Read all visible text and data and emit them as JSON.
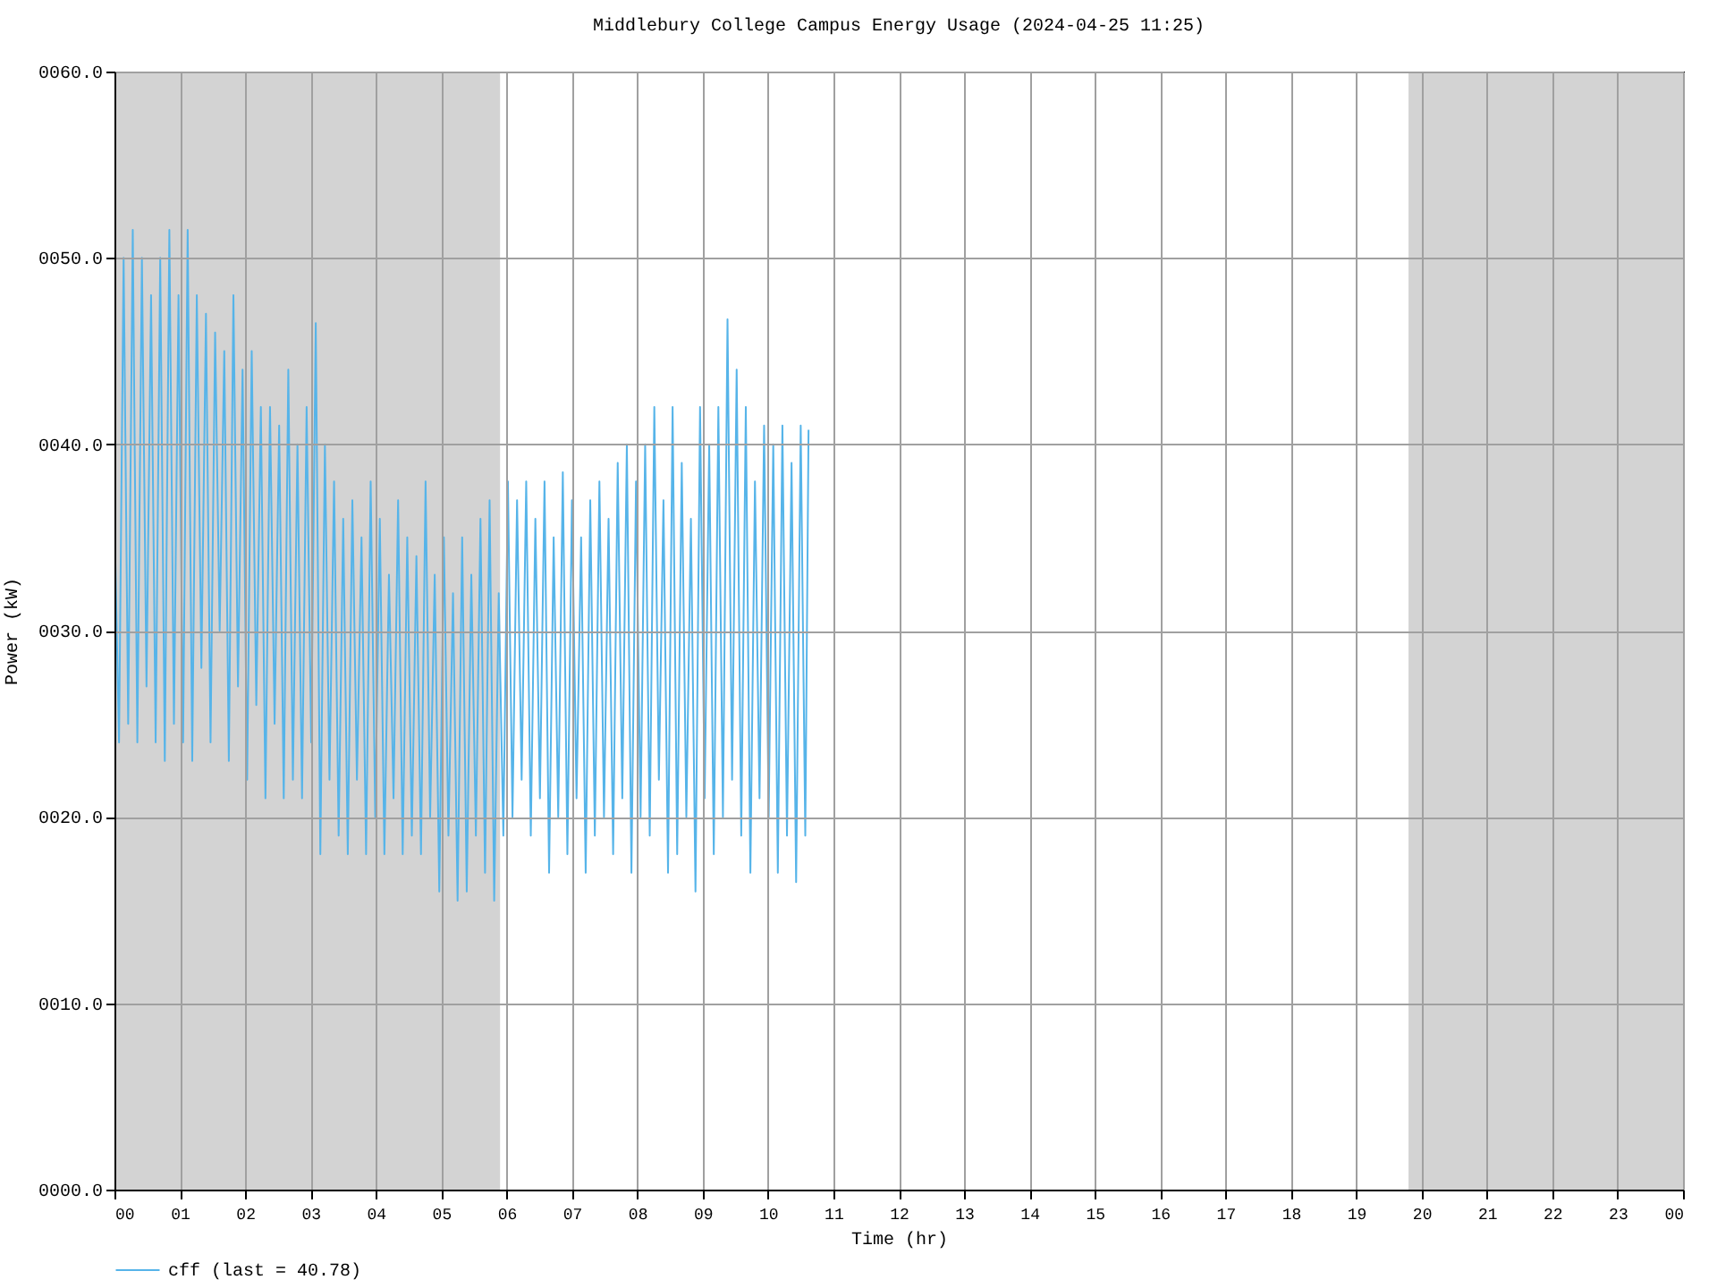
{
  "chart_data": {
    "type": "line",
    "title": "Middlebury College Campus Energy Usage (2024-04-25 11:25)",
    "xlabel": "Time (hr)",
    "ylabel": "Power (kW)",
    "xlim": [
      0,
      24
    ],
    "xticks": [
      {
        "value": 0,
        "label": "00"
      },
      {
        "value": 1,
        "label": "01"
      },
      {
        "value": 2,
        "label": "02"
      },
      {
        "value": 3,
        "label": "03"
      },
      {
        "value": 4,
        "label": "04"
      },
      {
        "value": 5,
        "label": "05"
      },
      {
        "value": 6,
        "label": "06"
      },
      {
        "value": 7,
        "label": "07"
      },
      {
        "value": 8,
        "label": "08"
      },
      {
        "value": 9,
        "label": "09"
      },
      {
        "value": 10,
        "label": "10"
      },
      {
        "value": 11,
        "label": "11"
      },
      {
        "value": 12,
        "label": "12"
      },
      {
        "value": 13,
        "label": "13"
      },
      {
        "value": 14,
        "label": "14"
      },
      {
        "value": 15,
        "label": "15"
      },
      {
        "value": 16,
        "label": "16"
      },
      {
        "value": 17,
        "label": "17"
      },
      {
        "value": 18,
        "label": "18"
      },
      {
        "value": 19,
        "label": "19"
      },
      {
        "value": 20,
        "label": "20"
      },
      {
        "value": 21,
        "label": "21"
      },
      {
        "value": 22,
        "label": "22"
      },
      {
        "value": 23,
        "label": "23"
      },
      {
        "value": 24,
        "label": "00"
      }
    ],
    "ylim": [
      0,
      60
    ],
    "yticks": [
      {
        "value": 0,
        "label": "0000.0"
      },
      {
        "value": 10,
        "label": "0010.0"
      },
      {
        "value": 20,
        "label": "0020.0"
      },
      {
        "value": 30,
        "label": "0030.0"
      },
      {
        "value": 40,
        "label": "0040.0"
      },
      {
        "value": 50,
        "label": "0050.0"
      },
      {
        "value": 60,
        "label": "0060.0"
      }
    ],
    "grid": true,
    "legend": "bottom",
    "bands": [
      {
        "axis": "x",
        "from": 0,
        "to": 5.9,
        "color": "#d3d3d3"
      },
      {
        "axis": "x",
        "from": 19.8,
        "to": 24,
        "color": "#d3d3d3"
      }
    ],
    "series": [
      {
        "name": "cff (last = 40.78)",
        "color": "#56b4e9",
        "x": [
          0.0,
          0.07,
          0.14,
          0.21,
          0.28,
          0.35,
          0.42,
          0.49,
          0.56,
          0.63,
          0.7,
          0.77,
          0.84,
          0.91,
          0.98,
          1.05,
          1.12,
          1.19,
          1.26,
          1.33,
          1.4,
          1.47,
          1.54,
          1.61,
          1.68,
          1.75,
          1.82,
          1.89,
          1.96,
          2.03,
          2.1,
          2.17,
          2.24,
          2.31,
          2.38,
          2.45,
          2.52,
          2.59,
          2.66,
          2.73,
          2.8,
          2.87,
          2.94,
          3.01,
          3.08,
          3.15,
          3.22,
          3.29,
          3.36,
          3.43,
          3.5,
          3.57,
          3.64,
          3.71,
          3.78,
          3.85,
          3.92,
          3.99,
          4.06,
          4.13,
          4.2,
          4.27,
          4.34,
          4.41,
          4.48,
          4.55,
          4.62,
          4.69,
          4.76,
          4.83,
          4.9,
          4.97,
          5.04,
          5.11,
          5.18,
          5.25,
          5.32,
          5.39,
          5.46,
          5.53,
          5.6,
          5.67,
          5.74,
          5.81,
          5.88,
          5.95,
          6.02,
          6.09,
          6.16,
          6.23,
          6.3,
          6.37,
          6.44,
          6.51,
          6.58,
          6.65,
          6.72,
          6.79,
          6.86,
          6.93,
          7.0,
          7.07,
          7.14,
          7.21,
          7.28,
          7.35,
          7.42,
          7.49,
          7.56,
          7.63,
          7.7,
          7.77,
          7.84,
          7.91,
          7.98,
          8.05,
          8.12,
          8.19,
          8.26,
          8.33,
          8.4,
          8.47,
          8.54,
          8.61,
          8.68,
          8.75,
          8.82,
          8.89,
          8.96,
          9.03,
          9.1,
          9.17,
          9.24,
          9.31,
          9.38,
          9.45,
          9.52,
          9.59,
          9.66,
          9.73,
          9.8,
          9.87,
          9.94,
          10.01,
          10.08,
          10.15,
          10.22,
          10.29,
          10.36,
          10.43,
          10.5,
          10.57,
          10.62
        ],
        "values": [
          36,
          24,
          50,
          25,
          51.5,
          24,
          50,
          27,
          48,
          24,
          50,
          23,
          51.5,
          25,
          48,
          24,
          51.5,
          23,
          48,
          28,
          47,
          24,
          46,
          30,
          45,
          23,
          48,
          27,
          44,
          22,
          45,
          26,
          42,
          21,
          42,
          25,
          41,
          21,
          44,
          22,
          40,
          21,
          42,
          24,
          46.5,
          18,
          40,
          22,
          38,
          19,
          36,
          18,
          37,
          22,
          35,
          18,
          38,
          20,
          36,
          18,
          33,
          21,
          37,
          18,
          35,
          19,
          34,
          18,
          38,
          20,
          33,
          16,
          35,
          19,
          32,
          15.5,
          35,
          16,
          33,
          19,
          36,
          17,
          37,
          15.5,
          32,
          19,
          38,
          20,
          37,
          22,
          38,
          19,
          36,
          21,
          38,
          17,
          35,
          20,
          38.5,
          18,
          37,
          21,
          35,
          17,
          37,
          19,
          38,
          20,
          36,
          18,
          39,
          21,
          40,
          17,
          38,
          20,
          40,
          19,
          42,
          22,
          37,
          17,
          42,
          18,
          39,
          20,
          36,
          16,
          42,
          21,
          40,
          18,
          42,
          20,
          46.7,
          22,
          44,
          19,
          42,
          17,
          38,
          21,
          41,
          20,
          40,
          17,
          41,
          19,
          39,
          16.5,
          41,
          19,
          40.78
        ]
      }
    ]
  }
}
